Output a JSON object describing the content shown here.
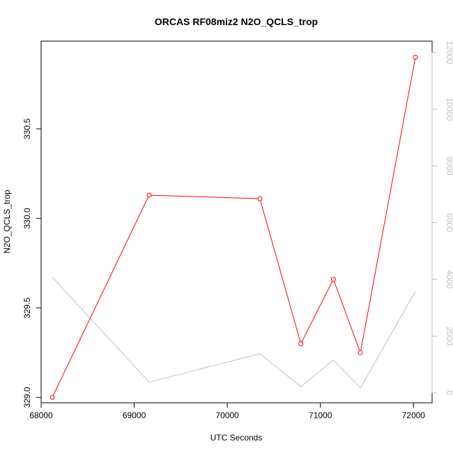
{
  "chart_data": {
    "type": "line",
    "title": "ORCAS RF08miz2 N2O_QCLS_trop",
    "xlabel": "UTC Seconds",
    "ylabel": "N2O_QCLS_trop",
    "xlim": [
      68000,
      72200
    ],
    "ylim": [
      328.97,
      330.99
    ],
    "y2lim": [
      -350,
      12400
    ],
    "x_ticks": [
      68000,
      69000,
      70000,
      71000,
      72000
    ],
    "y_ticks": [
      329.0,
      329.5,
      330.0,
      330.5
    ],
    "y_tick_labels": [
      "329.0",
      "329.5",
      "330.0",
      "330.5"
    ],
    "y2_ticks": [
      0,
      2000,
      4000,
      6000,
      8000,
      10000,
      12000
    ],
    "grid": false,
    "legend": "none",
    "series": [
      {
        "color": "#ff0000",
        "axis": "left",
        "markers": "open-circle",
        "x": [
          68120,
          69160,
          70350,
          70790,
          71140,
          71430,
          72020
        ],
        "y": [
          329.0,
          330.13,
          330.11,
          329.3,
          329.66,
          329.25,
          330.9
        ]
      },
      {
        "color": "#c0c0c0",
        "axis": "right",
        "markers": "none",
        "x": [
          68120,
          69160,
          70350,
          70790,
          71140,
          71430,
          72020
        ],
        "y": [
          4080,
          380,
          1380,
          220,
          1160,
          170,
          3580
        ]
      }
    ]
  }
}
